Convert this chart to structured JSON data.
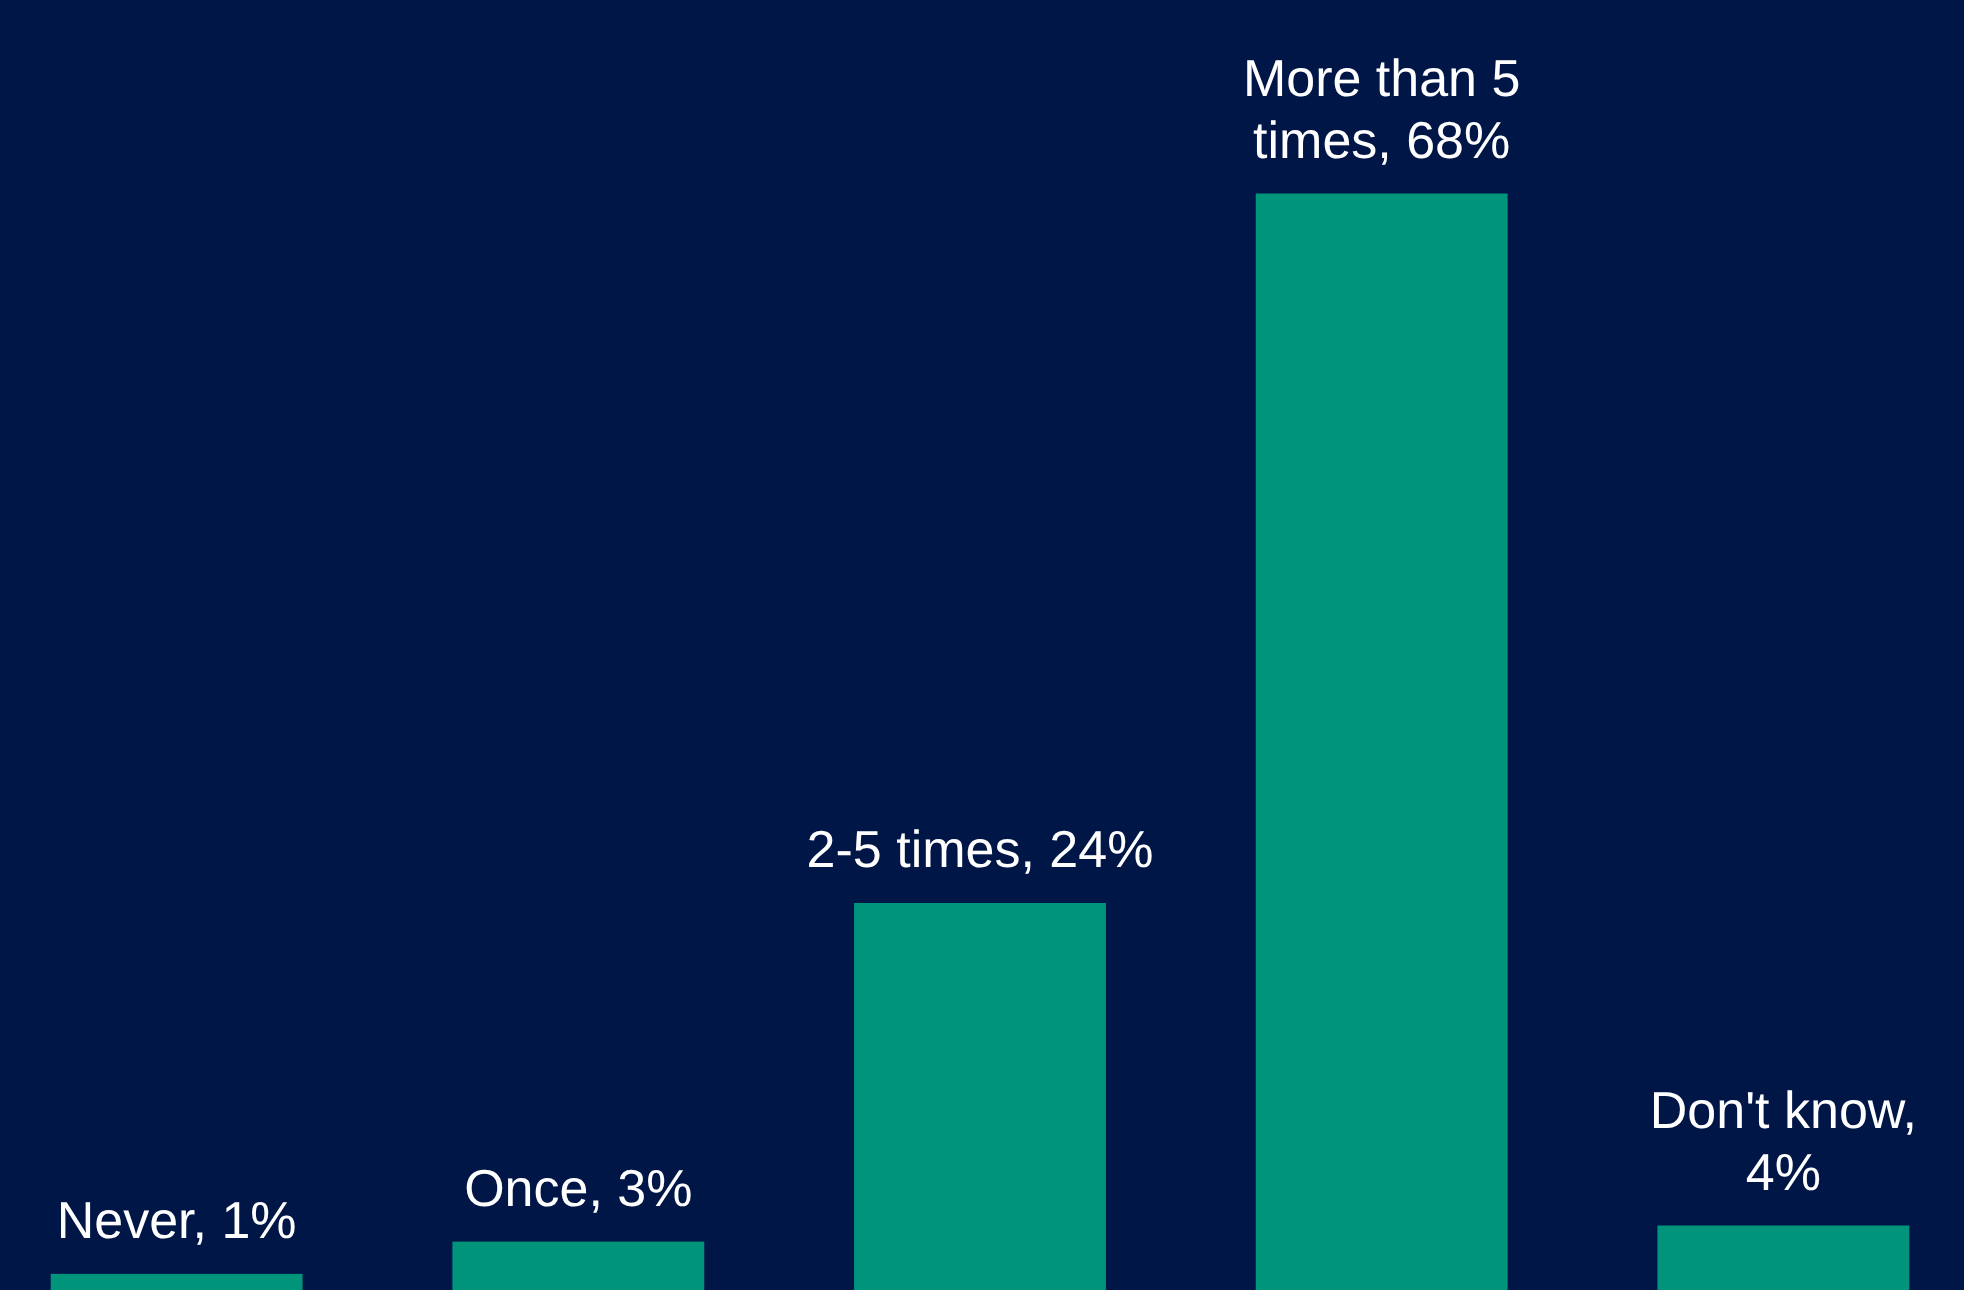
{
  "chart_data": {
    "type": "bar",
    "categories": [
      null,
      null,
      null,
      null,
      null
    ],
    "values": [
      1,
      3,
      24,
      68,
      4
    ],
    "value_labels": [
      "Never, 1%",
      "Once, 3%",
      "2-5 times, 24%",
      "More than 5 times, 68%",
      "Don't know, 4%"
    ],
    "color": "#00957a",
    "ylim": [
      0,
      80
    ]
  }
}
